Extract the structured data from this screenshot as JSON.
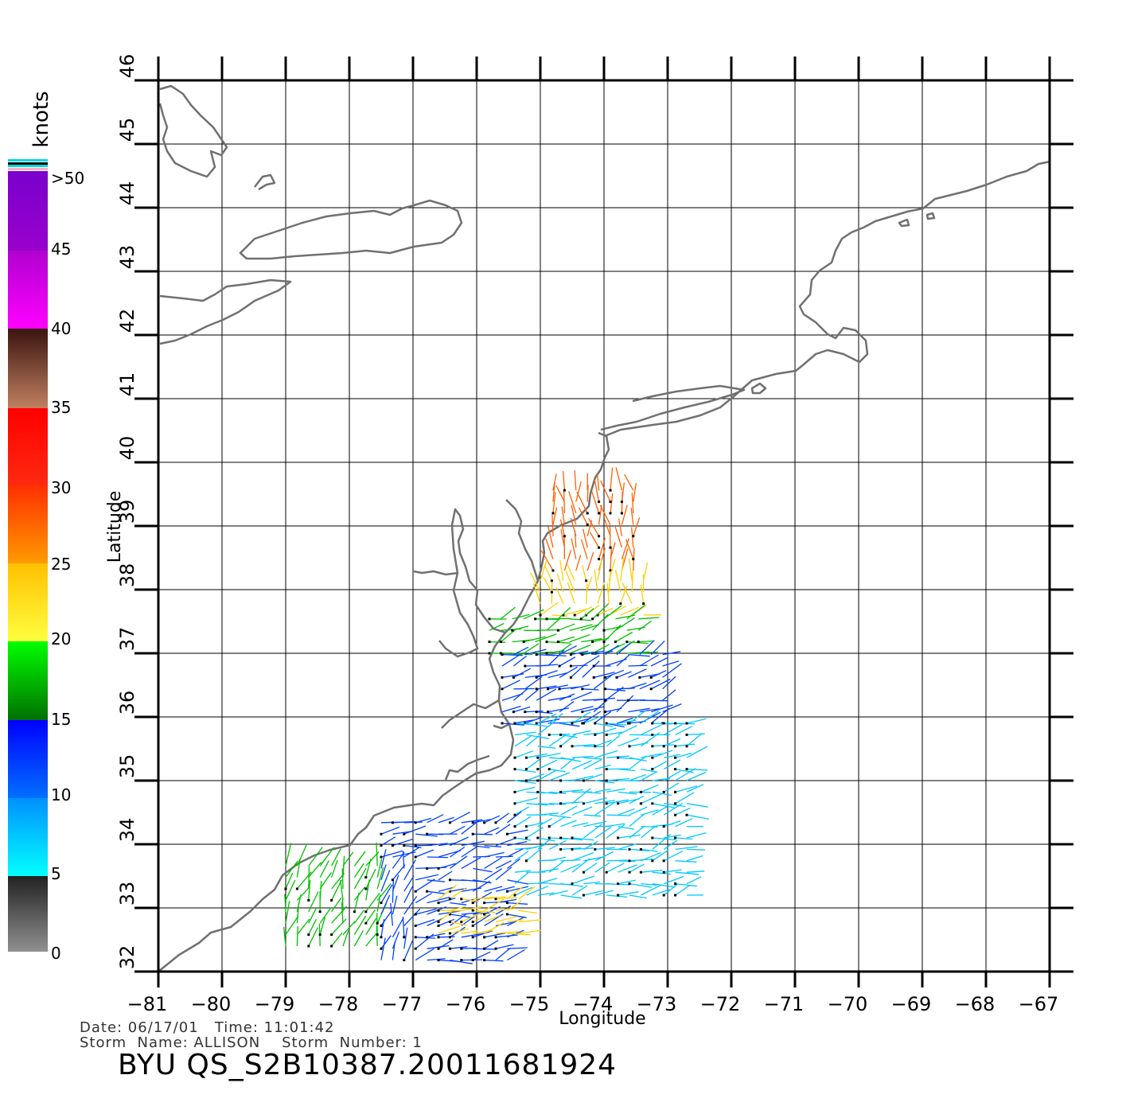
{
  "map": {
    "x_axis_title": "Longitude",
    "y_axis_title": "Latitude",
    "longitude_ticks": [
      -81,
      -80,
      -79,
      -78,
      -77,
      -76,
      -75,
      -74,
      -73,
      -72,
      -71,
      -70,
      -69,
      -68,
      -67
    ],
    "latitude_ticks": [
      32,
      33,
      34,
      35,
      36,
      37,
      38,
      39,
      40,
      41,
      42,
      43,
      44,
      45,
      46
    ],
    "longitude_range": [
      -81,
      -67
    ],
    "latitude_range": [
      32,
      46
    ],
    "grid": true
  },
  "colorbar": {
    "unit": "knots",
    "labels": [
      ">50",
      "45",
      "40",
      "35",
      "30",
      "25",
      "20",
      "15",
      "10",
      "5",
      "0"
    ],
    "colors": {
      "0-5": "#555555",
      "5-10": "#00c8ff",
      "10-15": "#0040ff",
      "15-20": "#00c000",
      "20-25": "#ffd000",
      "25-30": "#ff6000",
      "30-35": "#ff2000",
      "35-40": "#6a3020",
      "40-45": "#ff00ff",
      "45-50": "#7000c8"
    }
  },
  "info": {
    "line1": "Date: 06/17/01   Time: 11:01:42",
    "line2": "Storm  Name: ALLISON    Storm  Number: 1",
    "product_id": "BYU  QS_S2B10387.20011681924"
  },
  "wind_field": {
    "note_free": true,
    "regions": [
      {
        "lon": [
          -74.8,
          -73.4
        ],
        "lat": [
          38.3,
          39.6
        ],
        "speed_band": "25-30"
      },
      {
        "lon": [
          -75.0,
          -73.2
        ],
        "lat": [
          37.6,
          38.3
        ],
        "speed_band": "20-25"
      },
      {
        "lon": [
          -75.8,
          -73.4
        ],
        "lat": [
          37.0,
          37.6
        ],
        "speed_band": "15-20"
      },
      {
        "lon": [
          -75.6,
          -72.9
        ],
        "lat": [
          35.9,
          37.0
        ],
        "speed_band": "10-15"
      },
      {
        "lon": [
          -75.4,
          -72.6
        ],
        "lat": [
          33.2,
          35.9
        ],
        "speed_band": "5-10"
      },
      {
        "lon": [
          -79.0,
          -77.5
        ],
        "lat": [
          32.4,
          33.8
        ],
        "speed_band": "15-20"
      },
      {
        "lon": [
          -77.5,
          -75.5
        ],
        "lat": [
          32.0,
          34.5
        ],
        "speed_band": "10-15"
      },
      {
        "lon": [
          -76.6,
          -75.2
        ],
        "lat": [
          32.6,
          33.2
        ],
        "speed_band": "20-25"
      }
    ]
  }
}
